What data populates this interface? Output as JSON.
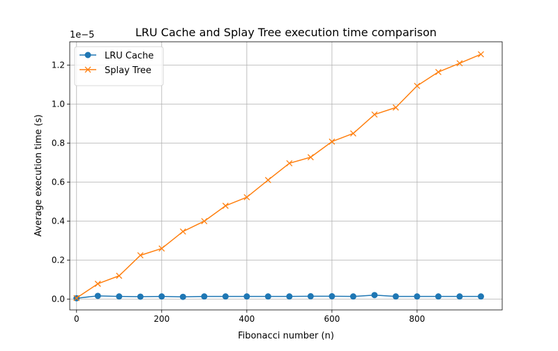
{
  "chart_data": {
    "type": "line",
    "title": "LRU Cache and Splay Tree execution time comparison",
    "xlabel": "Fibonacci number (n)",
    "ylabel": "Average execution time (s)",
    "y_offset_label": "1e−5",
    "xlim": [
      -16,
      1000
    ],
    "ylim": [
      -0.055,
      1.32
    ],
    "y_scale_factor": 1e-05,
    "x_ticks": [
      0,
      200,
      400,
      600,
      800
    ],
    "x_tick_labels": [
      "0",
      "200",
      "400",
      "600",
      "800"
    ],
    "y_ticks": [
      0.0,
      0.2,
      0.4,
      0.6,
      0.8,
      1.0,
      1.2
    ],
    "y_tick_labels": [
      "0.0",
      "0.2",
      "0.4",
      "0.6",
      "0.8",
      "1.0",
      "1.2"
    ],
    "grid": true,
    "legend_position": "top-left",
    "x": [
      0,
      50,
      100,
      150,
      200,
      250,
      300,
      350,
      400,
      450,
      500,
      550,
      600,
      650,
      700,
      750,
      800,
      850,
      900,
      950
    ],
    "series": [
      {
        "name": "LRU Cache",
        "color": "#1f77b4",
        "marker": "circle",
        "values": [
          0.005,
          0.017,
          0.014,
          0.013,
          0.014,
          0.012,
          0.014,
          0.014,
          0.014,
          0.014,
          0.014,
          0.015,
          0.015,
          0.014,
          0.021,
          0.014,
          0.014,
          0.014,
          0.014,
          0.014
        ]
      },
      {
        "name": "Splay Tree",
        "color": "#ff7f0e",
        "marker": "x",
        "values": [
          0.006,
          0.079,
          0.12,
          0.225,
          0.26,
          0.347,
          0.4,
          0.479,
          0.523,
          0.611,
          0.697,
          0.728,
          0.808,
          0.85,
          0.947,
          0.983,
          1.094,
          1.165,
          1.21,
          1.256
        ]
      }
    ]
  }
}
